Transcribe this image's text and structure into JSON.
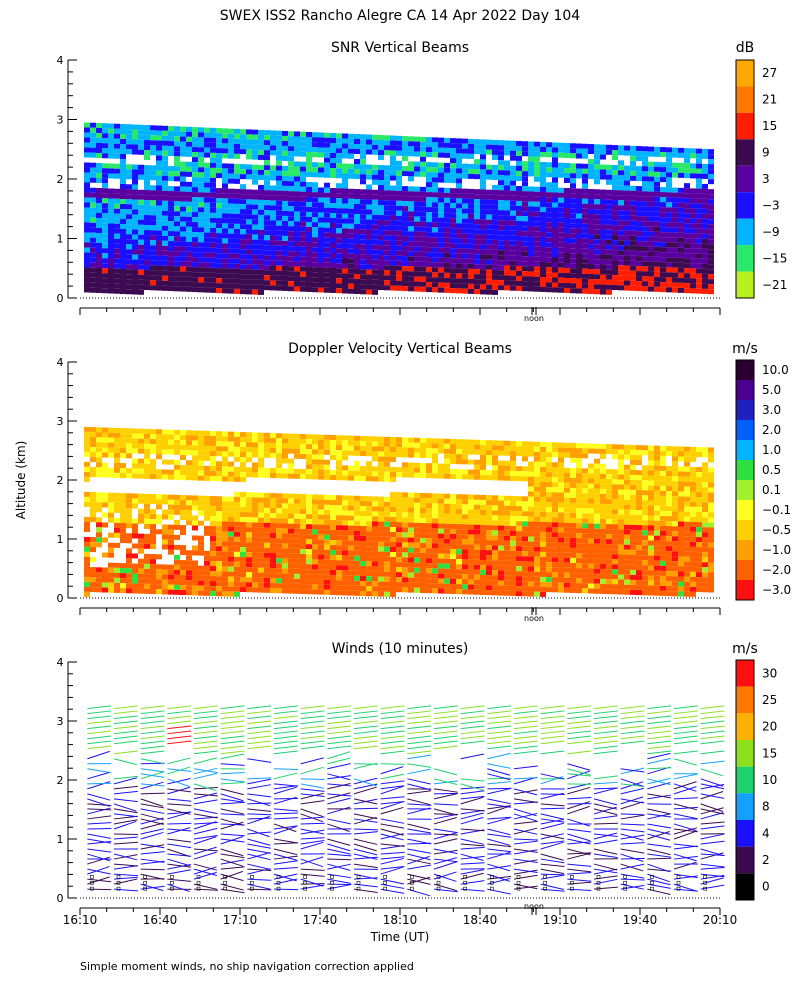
{
  "title": "SWEX ISS2 Rancho Alegre CA  14 Apr 2022 Day 104",
  "footnote": "Simple moment winds, no ship navigation correction applied",
  "chart_data": [
    {
      "type": "heatmap",
      "title": "SNR Vertical Beams",
      "ylabel": "",
      "ylim": [
        0,
        4
      ],
      "yticks": [
        "0",
        "1",
        "2",
        "3",
        "4"
      ],
      "noon_marker": "noon",
      "colorbar": {
        "unit": "dB",
        "labels": [
          "27",
          "21",
          "15",
          "9",
          "3",
          "−3",
          "−9",
          "−15",
          "−21"
        ],
        "colors": [
          "#ffa800",
          "#ff7800",
          "#ff1e00",
          "#3c0a50",
          "#5a00a0",
          "#1a10ff",
          "#00b4ff",
          "#29e86a",
          "#b8f020"
        ]
      },
      "layers": [
        {
          "altitude_km": [
            2.2,
            2.9
          ],
          "x_range": [
            "16:10",
            "20:10"
          ],
          "snr_db": [
            -15,
            -9
          ],
          "note": "green/cyan banding near top"
        },
        {
          "altitude_km": [
            0.2,
            0.6
          ],
          "x_range": [
            "16:10",
            "20:10"
          ],
          "snr_db": [
            3,
            9
          ]
        },
        {
          "altitude_km": [
            0.6,
            1.8
          ],
          "x_range": [
            "16:10",
            "20:10"
          ],
          "snr_db": [
            -9,
            3
          ]
        }
      ]
    },
    {
      "type": "heatmap",
      "title": "Doppler Velocity Vertical Beams",
      "ylabel": "Altitude (km)",
      "ylim": [
        0,
        4
      ],
      "yticks": [
        "0",
        "1",
        "2",
        "3",
        "4"
      ],
      "noon_marker": "noon",
      "colorbar": {
        "unit": "m/s",
        "labels": [
          "10.0",
          "5.0",
          "3.0",
          "2.0",
          "1.0",
          "0.5",
          "0.1",
          "−0.1",
          "−0.5",
          "−1.0",
          "−2.0",
          "−3.0"
        ],
        "colors": [
          "#2a0030",
          "#4a0090",
          "#2020c0",
          "#0060ff",
          "#00b4ff",
          "#30e040",
          "#a0f030",
          "#ffff20",
          "#ffd000",
          "#ffa000",
          "#ff6000",
          "#ff1010"
        ]
      }
    },
    {
      "type": "scatter",
      "title": "Winds (10 minutes)",
      "xlabel": "Time (UT)",
      "ylabel": "",
      "ylim": [
        0,
        4
      ],
      "yticks": [
        "0",
        "1",
        "2",
        "3",
        "4"
      ],
      "x_ticks": [
        "16:10",
        "16:40",
        "17:10",
        "17:40",
        "18:10",
        "18:40",
        "19:10",
        "19:40",
        "20:10"
      ],
      "noon_marker": "noon",
      "colorbar": {
        "unit": "m/s",
        "labels": [
          "30",
          "25",
          "20",
          "15",
          "10",
          "8",
          "4",
          "2",
          "0"
        ],
        "colors": [
          "#ff1010",
          "#ff7800",
          "#ffb000",
          "#8ce01e",
          "#1ed26e",
          "#14a0ff",
          "#1a10ff",
          "#3c0a50",
          "#000000"
        ]
      },
      "wind_profiles": {
        "time_start": "16:10",
        "time_end": "20:10",
        "interval_minutes": 10,
        "count": 24
      }
    }
  ]
}
